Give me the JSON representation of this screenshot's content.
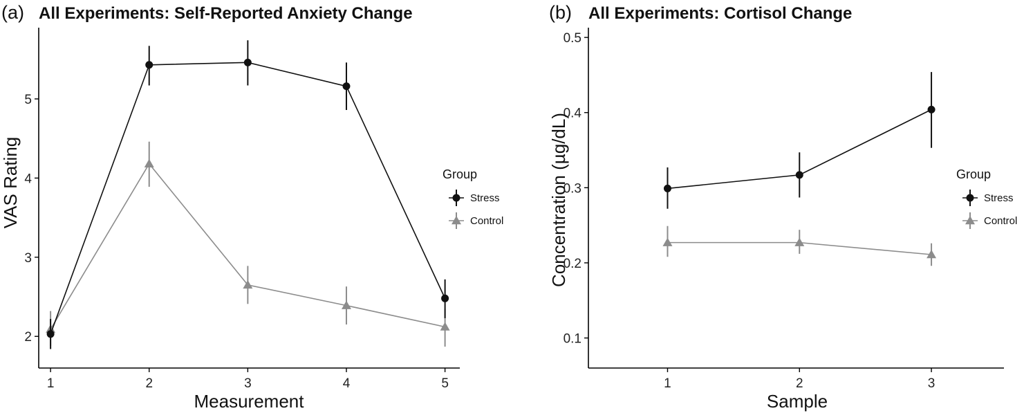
{
  "chart_data": [
    {
      "type": "line",
      "panel_label": "(a)",
      "title": "All Experiments: Self-Reported Anxiety Change",
      "xlabel": "Measurement",
      "ylabel": "VAS Rating",
      "x": [
        1,
        2,
        3,
        4,
        5
      ],
      "x_ticks": [
        "1",
        "2",
        "3",
        "4",
        "5"
      ],
      "y_ticks": [
        2,
        3,
        4,
        5
      ],
      "xlim": [
        0.88,
        5.15
      ],
      "ylim": [
        1.6,
        5.9
      ],
      "legend_title": "Group",
      "legend_position": "right",
      "grid": false,
      "series": [
        {
          "name": "Stress",
          "marker": "circle",
          "color": "#111111",
          "values": [
            2.03,
            5.43,
            5.46,
            5.16,
            2.48
          ],
          "err_low": [
            1.84,
            5.17,
            5.17,
            4.86,
            2.23
          ],
          "err_high": [
            2.22,
            5.67,
            5.74,
            5.46,
            2.72
          ]
        },
        {
          "name": "Control",
          "marker": "triangle",
          "color": "#8c8c8c",
          "values": [
            2.09,
            4.18,
            2.65,
            2.39,
            2.12
          ],
          "err_low": [
            1.88,
            3.89,
            2.41,
            2.15,
            1.87
          ],
          "err_high": [
            2.32,
            4.46,
            2.89,
            2.63,
            2.35
          ]
        }
      ]
    },
    {
      "type": "line",
      "panel_label": "(b)",
      "title": "All Experiments: Cortisol Change",
      "xlabel": "Sample",
      "ylabel": "Concentration (µg/dL)",
      "x": [
        1,
        2,
        3
      ],
      "x_ticks": [
        "1",
        "2",
        "3"
      ],
      "y_ticks": [
        0.1,
        0.2,
        0.3,
        0.4,
        0.5
      ],
      "y_tick_labels": [
        "0.1",
        "0.2",
        "0.3",
        "0.4",
        "0.5"
      ],
      "xlim": [
        0.4,
        3.55
      ],
      "ylim": [
        0.06,
        0.513
      ],
      "legend_title": "Group",
      "legend_position": "right",
      "grid": false,
      "series": [
        {
          "name": "Stress",
          "marker": "circle",
          "color": "#111111",
          "values": [
            0.299,
            0.317,
            0.404
          ],
          "err_low": [
            0.272,
            0.287,
            0.353
          ],
          "err_high": [
            0.327,
            0.347,
            0.454
          ]
        },
        {
          "name": "Control",
          "marker": "triangle",
          "color": "#8c8c8c",
          "values": [
            0.227,
            0.227,
            0.211
          ],
          "err_low": [
            0.208,
            0.212,
            0.196
          ],
          "err_high": [
            0.249,
            0.244,
            0.226
          ]
        }
      ]
    }
  ]
}
